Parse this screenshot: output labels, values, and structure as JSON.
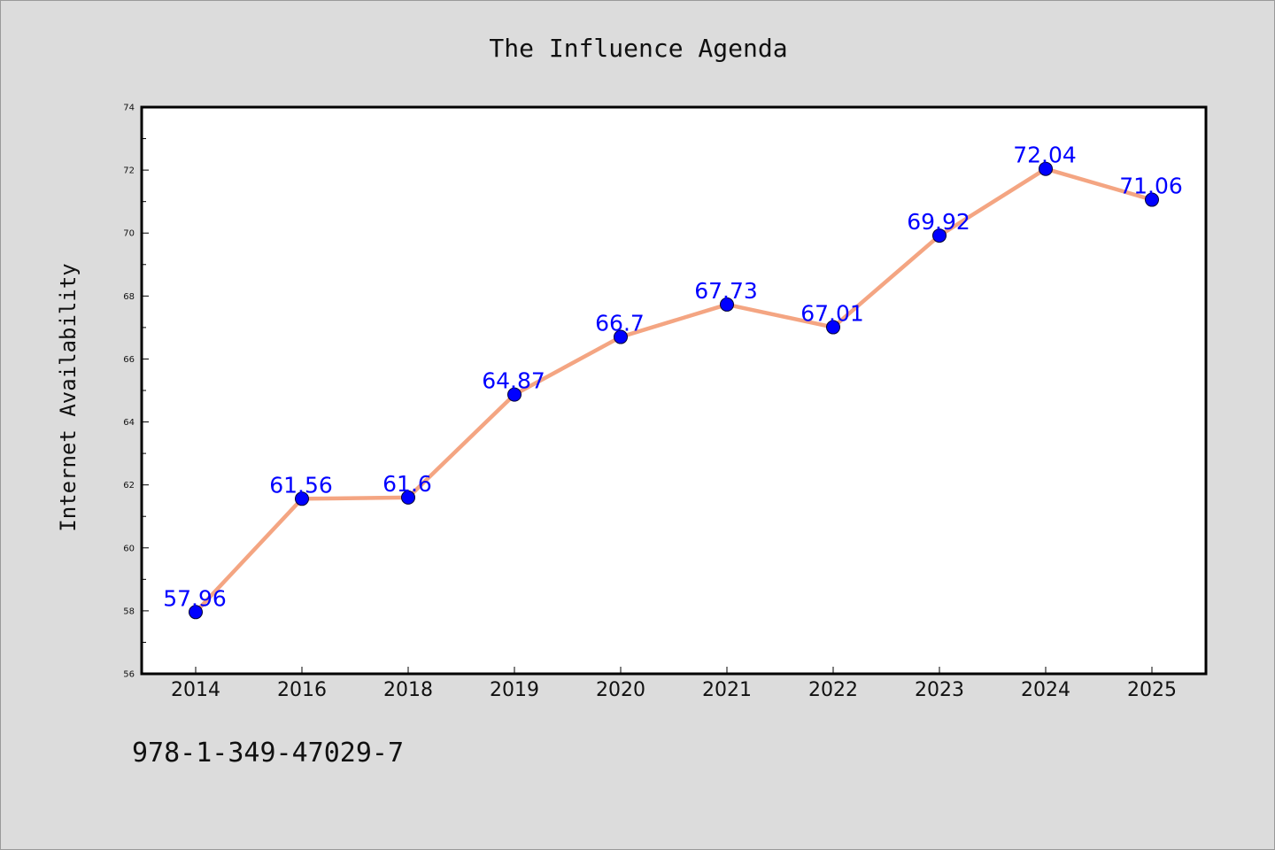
{
  "chart_data": {
    "type": "line",
    "title": "The Influence Agenda",
    "xlabel": "",
    "ylabel": "Internet Availability",
    "categories": [
      "2014",
      "2016",
      "2018",
      "2019",
      "2020",
      "2021",
      "2022",
      "2023",
      "2024",
      "2025"
    ],
    "series": [
      {
        "values": [
          57.96,
          61.56,
          61.6,
          64.87,
          66.7,
          67.73,
          67.01,
          69.92,
          72.04,
          71.06
        ]
      }
    ],
    "data_labels": [
      "57.96",
      "61.56",
      "61.6",
      "64.87",
      "66.7",
      "67.73",
      "67.01",
      "69.92",
      "72.04",
      "71.06"
    ],
    "ylim": [
      56,
      74
    ],
    "yticks": [
      "56",
      "58",
      "60",
      "62",
      "64",
      "66",
      "68",
      "70",
      "72",
      "74"
    ],
    "grid": false,
    "legend": "none",
    "colors": {
      "line": "#f4a582",
      "marker": "#0000ff",
      "label": "#0000ff",
      "background": "#dcdcdc",
      "plot_background": "#ffffff"
    }
  },
  "footer": {
    "isbn": "978-1-349-47029-7"
  }
}
